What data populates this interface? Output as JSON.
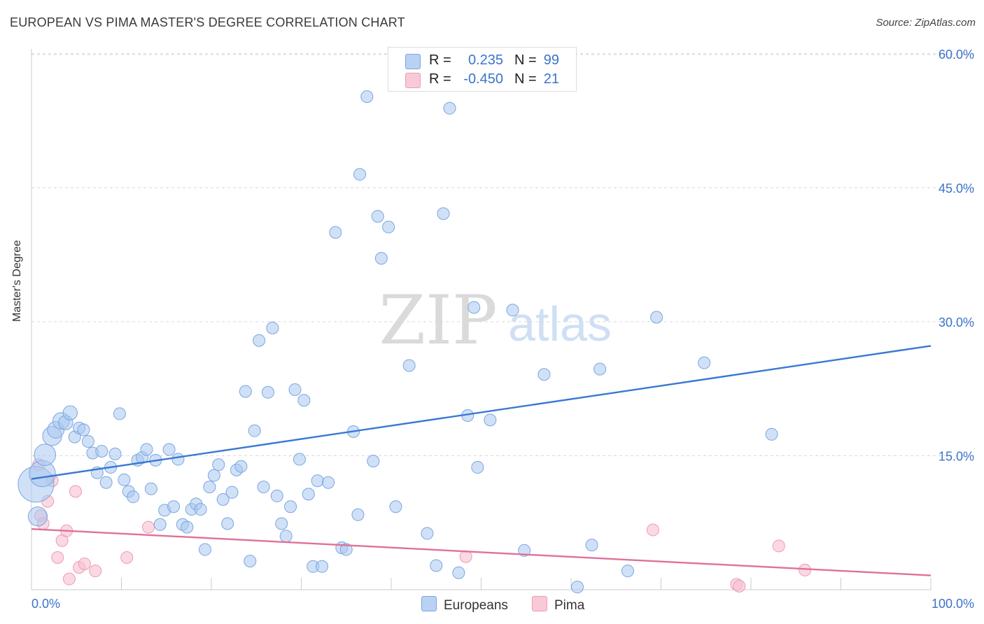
{
  "header": {
    "title": "EUROPEAN VS PIMA MASTER'S DEGREE CORRELATION CHART",
    "source": "Source: ZipAtlas.com"
  },
  "watermark": {
    "zip": "ZIP",
    "atlas": "atlas"
  },
  "legend": {
    "rows": [
      {
        "r_label": "R =",
        "r_value": "0.235",
        "n_label": "N =",
        "n_value": "99"
      },
      {
        "r_label": "R =",
        "r_value": "-0.450",
        "n_label": "N =",
        "n_value": "21"
      }
    ],
    "bottom": [
      {
        "label": "Europeans"
      },
      {
        "label": "Pima"
      }
    ]
  },
  "colors": {
    "europeans_fill": "#a9c8f0",
    "europeans_stroke": "#7aa6e0",
    "europeans_line": "#3a78d4",
    "pima_fill": "#f6bfd0",
    "pima_stroke": "#ee9ab4",
    "pima_line": "#e0709a",
    "axis_text": "#3b74c9",
    "grid": "#d8d8d8"
  },
  "chart_data": {
    "type": "scatter",
    "title": "EUROPEAN VS PIMA MASTER'S DEGREE CORRELATION CHART",
    "xlabel": "",
    "ylabel": "Master's Degree",
    "xlim": [
      0,
      100
    ],
    "ylim": [
      0,
      63
    ],
    "x_tick_labels": [
      "0.0%",
      "100.0%"
    ],
    "y_ticks": [
      15,
      30,
      45,
      60
    ],
    "y_tick_labels": [
      "15.0%",
      "30.0%",
      "45.0%",
      "60.0%"
    ],
    "grid": true,
    "series": [
      {
        "name": "Europeans",
        "r": 0.235,
        "n": 99,
        "trend": {
          "x": [
            0,
            100
          ],
          "y": [
            12.4,
            27.3
          ]
        },
        "points": [
          [
            0.5,
            11.8,
            3
          ],
          [
            0.7,
            8.2,
            1.6
          ],
          [
            1.2,
            13.0,
            2.2
          ],
          [
            1.5,
            15.1,
            1.8
          ],
          [
            2.3,
            17.2,
            1.6
          ],
          [
            2.7,
            17.9,
            1.4
          ],
          [
            3.3,
            18.9,
            1.4
          ],
          [
            3.8,
            18.7,
            1.2
          ],
          [
            4.3,
            19.8,
            1.2
          ],
          [
            4.8,
            17.1,
            1
          ],
          [
            5.3,
            18.1,
            1
          ],
          [
            5.8,
            17.9,
            1
          ],
          [
            6.3,
            16.6,
            1
          ],
          [
            6.8,
            15.3,
            1
          ],
          [
            7.3,
            13.1,
            1
          ],
          [
            7.8,
            15.5,
            1
          ],
          [
            8.3,
            12.0,
            1
          ],
          [
            8.8,
            13.7,
            1
          ],
          [
            9.3,
            15.2,
            1
          ],
          [
            9.8,
            19.7,
            1
          ],
          [
            10.3,
            12.3,
            1
          ],
          [
            10.8,
            11.0,
            1
          ],
          [
            11.3,
            10.4,
            1
          ],
          [
            11.8,
            14.5,
            1
          ],
          [
            12.3,
            14.8,
            1
          ],
          [
            12.8,
            15.7,
            1
          ],
          [
            13.3,
            11.3,
            1
          ],
          [
            13.8,
            14.5,
            1
          ],
          [
            14.3,
            7.3,
            1
          ],
          [
            14.8,
            8.9,
            1
          ],
          [
            15.3,
            15.7,
            1
          ],
          [
            15.8,
            9.3,
            1
          ],
          [
            16.3,
            14.6,
            1
          ],
          [
            16.8,
            7.3,
            1
          ],
          [
            17.3,
            7.0,
            1
          ],
          [
            17.8,
            9.0,
            1
          ],
          [
            18.3,
            9.6,
            1
          ],
          [
            18.8,
            9.0,
            1
          ],
          [
            19.3,
            4.5,
            1
          ],
          [
            19.8,
            11.5,
            1
          ],
          [
            20.3,
            12.8,
            1
          ],
          [
            20.8,
            14.0,
            1
          ],
          [
            21.3,
            10.1,
            1
          ],
          [
            21.8,
            7.4,
            1
          ],
          [
            22.3,
            10.9,
            1
          ],
          [
            22.8,
            13.4,
            1
          ],
          [
            23.3,
            13.8,
            1
          ],
          [
            23.8,
            22.2,
            1
          ],
          [
            24.3,
            3.2,
            1
          ],
          [
            24.8,
            17.8,
            1
          ],
          [
            25.3,
            27.9,
            1
          ],
          [
            25.8,
            11.5,
            1
          ],
          [
            26.3,
            22.1,
            1
          ],
          [
            26.8,
            29.3,
            1
          ],
          [
            27.3,
            10.5,
            1
          ],
          [
            27.8,
            7.4,
            1
          ],
          [
            28.3,
            6.0,
            1
          ],
          [
            28.8,
            9.3,
            1
          ],
          [
            29.3,
            22.4,
            1
          ],
          [
            29.8,
            14.6,
            1
          ],
          [
            30.3,
            21.2,
            1
          ],
          [
            30.8,
            10.7,
            1
          ],
          [
            31.3,
            2.6,
            1
          ],
          [
            31.8,
            12.2,
            1
          ],
          [
            32.3,
            2.6,
            1
          ],
          [
            33.0,
            12.0,
            1
          ],
          [
            33.8,
            40.0,
            1
          ],
          [
            34.5,
            4.7,
            1
          ],
          [
            35.0,
            4.5,
            1
          ],
          [
            35.8,
            17.7,
            1
          ],
          [
            36.3,
            8.4,
            1
          ],
          [
            36.5,
            46.5,
            1
          ],
          [
            37.3,
            55.2,
            1
          ],
          [
            38.0,
            14.4,
            1
          ],
          [
            38.5,
            41.8,
            1
          ],
          [
            38.9,
            37.1,
            1
          ],
          [
            39.7,
            40.6,
            1
          ],
          [
            40.5,
            9.3,
            1
          ],
          [
            42.0,
            25.1,
            1
          ],
          [
            44.0,
            6.3,
            1
          ],
          [
            45.0,
            2.7,
            1
          ],
          [
            45.8,
            42.1,
            1
          ],
          [
            46.5,
            53.9,
            1
          ],
          [
            47.5,
            1.9,
            1
          ],
          [
            48.5,
            19.5,
            1
          ],
          [
            49.2,
            31.6,
            1
          ],
          [
            49.6,
            13.7,
            1
          ],
          [
            51.0,
            19.0,
            1
          ],
          [
            53.5,
            31.3,
            1
          ],
          [
            54.7,
            58.8,
            1
          ],
          [
            54.8,
            4.4,
            1
          ],
          [
            57.0,
            24.1,
            1
          ],
          [
            60.7,
            0.3,
            1
          ],
          [
            62.3,
            5.0,
            1
          ],
          [
            63.2,
            24.7,
            1
          ],
          [
            66.3,
            2.1,
            1
          ],
          [
            69.5,
            30.5,
            1
          ],
          [
            74.8,
            25.4,
            1
          ],
          [
            82.3,
            17.4,
            1
          ]
        ]
      },
      {
        "name": "Pima",
        "r": -0.45,
        "n": 21,
        "trend": {
          "x": [
            0,
            100
          ],
          "y": [
            6.8,
            1.6
          ]
        },
        "points": [
          [
            0.8,
            14.0,
            1
          ],
          [
            1.0,
            8.3,
            1
          ],
          [
            1.3,
            7.4,
            1
          ],
          [
            1.8,
            9.9,
            1
          ],
          [
            2.3,
            12.2,
            1
          ],
          [
            2.9,
            3.6,
            1
          ],
          [
            3.4,
            5.5,
            1
          ],
          [
            3.9,
            6.6,
            1
          ],
          [
            4.2,
            1.2,
            1
          ],
          [
            4.9,
            11.0,
            1
          ],
          [
            5.3,
            2.5,
            1
          ],
          [
            5.9,
            2.9,
            1
          ],
          [
            7.1,
            2.1,
            1
          ],
          [
            10.6,
            3.6,
            1
          ],
          [
            13.0,
            7.0,
            1
          ],
          [
            48.3,
            3.7,
            1
          ],
          [
            69.1,
            6.7,
            1
          ],
          [
            78.4,
            0.6,
            1
          ],
          [
            78.7,
            0.4,
            1
          ],
          [
            83.1,
            4.9,
            1
          ],
          [
            86.0,
            2.2,
            1
          ]
        ]
      }
    ]
  }
}
